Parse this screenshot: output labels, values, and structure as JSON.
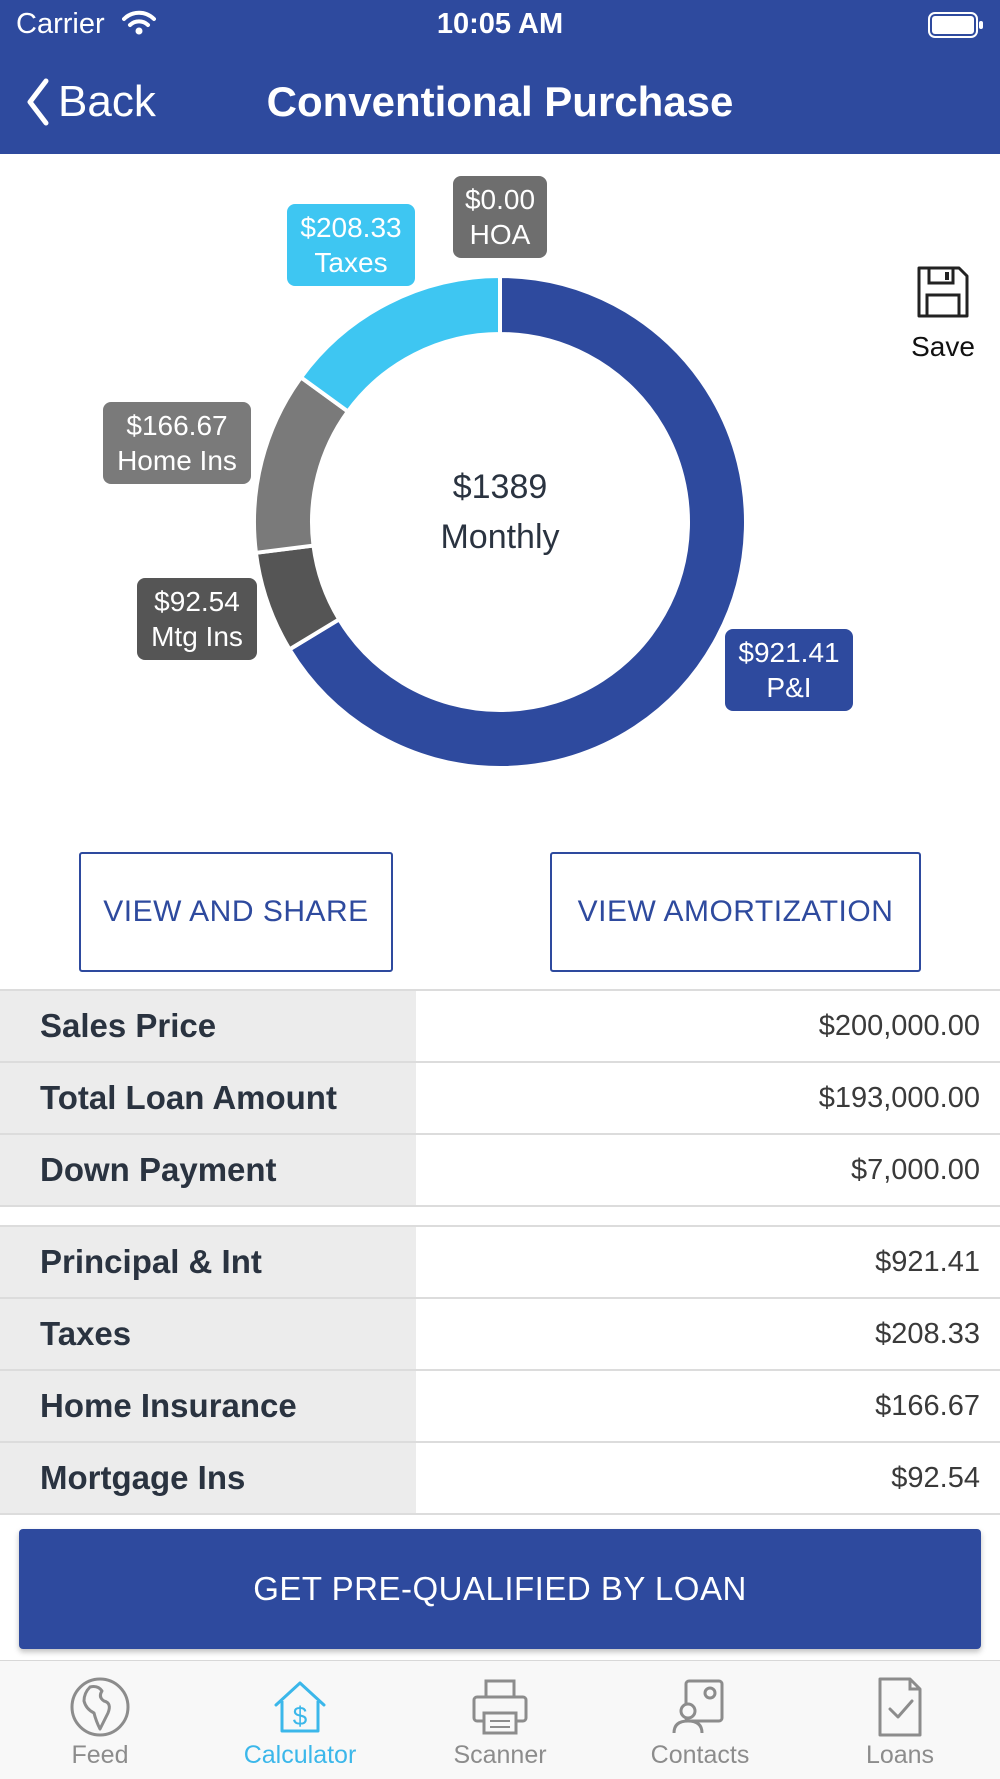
{
  "status_bar": {
    "carrier": "Carrier",
    "time": "10:05 AM"
  },
  "nav": {
    "back_label": "Back",
    "title": "Conventional Purchase"
  },
  "save_label": "Save",
  "chart_data": {
    "type": "pie",
    "center_value": "$1389",
    "center_label": "Monthly",
    "slices": [
      {
        "label": "P&I",
        "value": 921.41,
        "display": "$921.41",
        "color": "#2e4a9e"
      },
      {
        "label": "Mtg Ins",
        "value": 92.54,
        "display": "$92.54",
        "color": "#555555"
      },
      {
        "label": "Home Ins",
        "value": 166.67,
        "display": "$166.67",
        "color": "#7a7a7a"
      },
      {
        "label": "Taxes",
        "value": 208.33,
        "display": "$208.33",
        "color": "#3ec6f2"
      },
      {
        "label": "HOA",
        "value": 0.0,
        "display": "$0.00",
        "color": "#6e6e6e"
      }
    ]
  },
  "buttons": {
    "view_share": "VIEW AND SHARE",
    "view_amortization": "VIEW AMORTIZATION"
  },
  "loan_table": [
    {
      "label": "Sales Price",
      "value": "$200,000.00"
    },
    {
      "label": "Total Loan Amount",
      "value": "$193,000.00"
    },
    {
      "label": "Down Payment",
      "value": "$7,000.00"
    }
  ],
  "payment_table": [
    {
      "label": "Principal & Int",
      "value": "$921.41"
    },
    {
      "label": "Taxes",
      "value": "$208.33"
    },
    {
      "label": "Home Insurance",
      "value": "$166.67"
    },
    {
      "label": "Mortgage Ins",
      "value": "$92.54"
    }
  ],
  "cta_label": "GET PRE-QUALIFIED BY LOAN",
  "tabs": [
    {
      "label": "Feed",
      "icon": "globe-icon",
      "active": false
    },
    {
      "label": "Calculator",
      "icon": "house-dollar-icon",
      "active": true
    },
    {
      "label": "Scanner",
      "icon": "printer-icon",
      "active": false
    },
    {
      "label": "Contacts",
      "icon": "contacts-icon",
      "active": false
    },
    {
      "label": "Loans",
      "icon": "document-check-icon",
      "active": false
    }
  ]
}
